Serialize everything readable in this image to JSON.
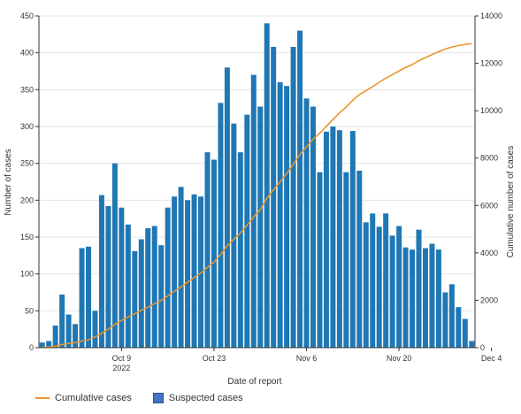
{
  "chart_data": {
    "type": "bar",
    "xlabel": "Date of report",
    "ylabel": "Number of cases",
    "y2label": "Cumulative number of cases",
    "ylim": [
      0,
      450
    ],
    "y2lim": [
      0,
      14000
    ],
    "yticks": [
      0,
      50,
      100,
      150,
      200,
      250,
      300,
      350,
      400,
      450
    ],
    "y2ticks": [
      0,
      2000,
      4000,
      6000,
      8000,
      10000,
      12000,
      14000
    ],
    "x_tick_labels": [
      {
        "label": "Oct 9",
        "sub": "2022",
        "index": 12
      },
      {
        "label": "Oct 23",
        "sub": "",
        "index": 26
      },
      {
        "label": "Nov 6",
        "sub": "",
        "index": 40
      },
      {
        "label": "Nov 20",
        "sub": "",
        "index": 54
      },
      {
        "label": "Dec 4",
        "sub": "",
        "index": 68
      }
    ],
    "bar_color": "#1F77B4",
    "line_color": "#E8962E",
    "series": [
      {
        "name": "Suspected cases",
        "kind": "bar",
        "values": [
          7,
          9,
          30,
          72,
          45,
          32,
          135,
          137,
          50,
          207,
          192,
          250,
          190,
          167,
          131,
          147,
          162,
          165,
          139,
          190,
          205,
          218,
          200,
          208,
          205,
          265,
          255,
          332,
          380,
          304,
          265,
          316,
          370,
          327,
          440,
          408,
          360,
          355,
          408,
          430,
          338,
          327,
          238,
          293,
          300,
          295,
          238,
          294,
          240,
          170,
          182,
          164,
          182,
          152,
          165,
          136,
          133,
          160,
          135,
          141,
          133,
          75,
          86,
          55,
          39,
          9
        ]
      },
      {
        "name": "Cumulative cases",
        "kind": "line",
        "values": [
          20,
          30,
          60,
          130,
          180,
          210,
          280,
          330,
          450,
          600,
          780,
          980,
          1150,
          1300,
          1430,
          1580,
          1700,
          1860,
          1990,
          2180,
          2380,
          2560,
          2760,
          2960,
          3140,
          3390,
          3610,
          3930,
          4300,
          4570,
          4840,
          5170,
          5520,
          5820,
          6300,
          6660,
          7000,
          7350,
          7740,
          8150,
          8480,
          8800,
          9050,
          9340,
          9630,
          9910,
          10150,
          10440,
          10680,
          10850,
          11010,
          11200,
          11370,
          11520,
          11680,
          11820,
          11950,
          12110,
          12240,
          12370,
          12490,
          12600,
          12690,
          12750,
          12800,
          12830
        ]
      }
    ],
    "legend": [
      {
        "label": "Cumulative cases",
        "kind": "line"
      },
      {
        "label": "Suspected cases",
        "kind": "bar"
      }
    ]
  }
}
